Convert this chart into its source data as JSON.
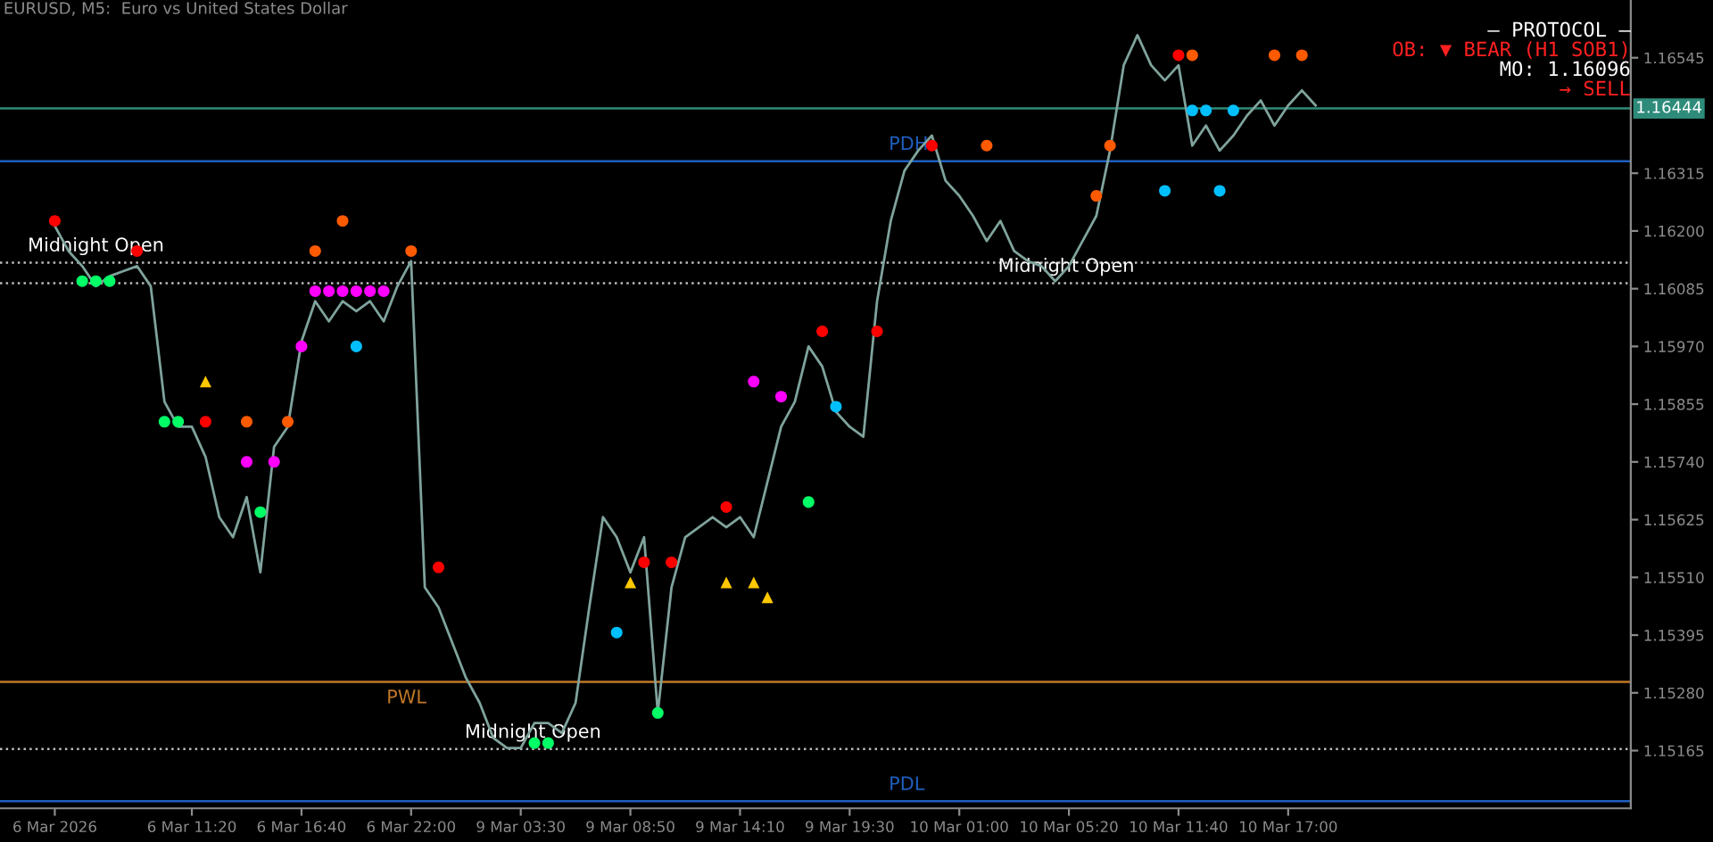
{
  "chart_data": {
    "type": "line",
    "title": "EURUSD, M5:  Euro vs United States Dollar",
    "categories": [
      "6 Mar 2026",
      null,
      null,
      null,
      null,
      null,
      null,
      null,
      null,
      null,
      "6 Mar 11:20",
      null,
      null,
      null,
      null,
      null,
      null,
      null,
      "6 Mar 16:40",
      null,
      null,
      null,
      null,
      null,
      null,
      null,
      "6 Mar 22:00",
      null,
      null,
      null,
      null,
      null,
      null,
      null,
      "9 Mar 03:30",
      null,
      null,
      null,
      null,
      null,
      null,
      null,
      "9 Mar 08:50",
      null,
      null,
      null,
      null,
      null,
      null,
      null,
      "9 Mar 14:10",
      null,
      null,
      null,
      null,
      null,
      null,
      null,
      "9 Mar 19:30",
      null,
      null,
      null,
      null,
      null,
      null,
      null,
      "10 Mar 01:00",
      null,
      null,
      null,
      null,
      null,
      null,
      null,
      "10 Mar 05:20",
      null,
      null,
      null,
      null,
      null,
      null,
      null,
      "10 Mar 11:40",
      null,
      null,
      null,
      null,
      null,
      null,
      null,
      "10 Mar 17:00",
      null,
      null
    ],
    "series": [
      {
        "type": "line",
        "color": "#7fa39c",
        "values": [
          1.1621,
          1.1616,
          1.1613,
          1.1609,
          1.1611,
          1.1612,
          1.1613,
          1.1609,
          1.1586,
          1.1581,
          1.1581,
          1.1575,
          1.1563,
          1.1559,
          1.1567,
          1.1552,
          1.1577,
          1.1581,
          1.1598,
          1.1606,
          1.1602,
          1.1606,
          1.1604,
          1.1606,
          1.1602,
          1.1609,
          1.1614,
          1.1549,
          1.1545,
          1.1538,
          1.1531,
          1.1526,
          1.1519,
          1.1517,
          1.1517,
          1.1522,
          1.1522,
          1.152,
          1.1526,
          1.1545,
          1.1563,
          1.1559,
          1.1552,
          1.1559,
          1.1524,
          1.1549,
          1.1559,
          1.1561,
          1.1563,
          1.1561,
          1.1563,
          1.1559,
          1.157,
          1.1581,
          1.1586,
          1.1597,
          1.1593,
          1.1584,
          1.1581,
          1.1579,
          1.1606,
          1.1622,
          1.1632,
          1.1636,
          1.1639,
          1.163,
          1.1627,
          1.1623,
          1.1618,
          1.1622,
          1.1616,
          1.1614,
          1.1613,
          1.161,
          1.1613,
          1.1618,
          1.1623,
          1.1636,
          1.1653,
          1.1659,
          1.1653,
          1.165,
          1.1653,
          1.1637,
          1.1641,
          1.1636,
          1.1639,
          1.1643,
          1.1646,
          1.1641,
          1.1645,
          1.1648,
          1.1645
        ]
      },
      {
        "type": "scatter",
        "marker": "circle",
        "color": "#ff0000",
        "values": [
          1.1622,
          null,
          null,
          null,
          null,
          null,
          1.1616,
          null,
          null,
          null,
          null,
          1.1582,
          null,
          null,
          null,
          null,
          null,
          null,
          null,
          null,
          null,
          null,
          null,
          null,
          null,
          null,
          null,
          null,
          1.1553,
          null,
          null,
          null,
          null,
          null,
          null,
          null,
          null,
          null,
          null,
          null,
          null,
          null,
          null,
          1.1554,
          null,
          1.1554,
          null,
          null,
          null,
          1.1565,
          null,
          null,
          null,
          null,
          null,
          null,
          1.16,
          null,
          null,
          null,
          1.16,
          null,
          null,
          null,
          1.1637,
          null,
          null,
          null,
          null,
          null,
          null,
          null,
          null,
          null,
          null,
          null,
          null,
          null,
          null,
          null,
          null,
          null,
          1.1655,
          null,
          null,
          null,
          null,
          null,
          null,
          null,
          null,
          null,
          null
        ]
      },
      {
        "type": "scatter",
        "marker": "circle",
        "color": "#ff5a00",
        "values": [
          null,
          null,
          null,
          null,
          null,
          null,
          null,
          null,
          null,
          null,
          null,
          null,
          null,
          null,
          1.1582,
          null,
          null,
          1.1582,
          null,
          1.1616,
          null,
          1.1622,
          null,
          null,
          null,
          null,
          1.1616,
          null,
          null,
          null,
          null,
          null,
          null,
          null,
          null,
          null,
          null,
          null,
          null,
          null,
          null,
          null,
          null,
          null,
          null,
          null,
          null,
          null,
          null,
          null,
          null,
          null,
          null,
          null,
          null,
          null,
          null,
          null,
          null,
          null,
          null,
          null,
          null,
          null,
          null,
          null,
          null,
          null,
          1.1637,
          null,
          null,
          null,
          null,
          null,
          null,
          null,
          1.1627,
          1.1637,
          null,
          null,
          null,
          null,
          null,
          1.1655,
          null,
          null,
          null,
          null,
          null,
          1.1655,
          null,
          1.1655,
          null
        ]
      },
      {
        "type": "scatter",
        "marker": "circle",
        "color": "#ff00ff",
        "values": [
          null,
          null,
          null,
          null,
          null,
          null,
          null,
          null,
          null,
          null,
          null,
          null,
          null,
          null,
          1.1574,
          null,
          1.1574,
          null,
          1.1597,
          1.1608,
          1.1608,
          1.1608,
          1.1608,
          1.1608,
          1.1608,
          null,
          null,
          null,
          null,
          null,
          null,
          null,
          null,
          null,
          null,
          null,
          null,
          null,
          null,
          null,
          null,
          null,
          null,
          null,
          null,
          null,
          null,
          null,
          null,
          null,
          null,
          1.159,
          null,
          1.1587,
          null,
          null,
          null,
          null,
          null,
          null,
          null,
          null,
          null,
          null,
          null,
          null,
          null,
          null,
          null,
          null,
          null,
          null,
          null,
          null,
          null,
          null,
          null,
          null,
          null,
          null,
          null,
          null,
          null,
          null,
          null,
          null,
          null,
          null,
          null,
          null,
          null,
          null,
          null
        ]
      },
      {
        "type": "scatter",
        "marker": "circle",
        "color": "#00ff66",
        "values": [
          null,
          null,
          1.161,
          1.161,
          1.161,
          null,
          null,
          null,
          1.1582,
          1.1582,
          null,
          null,
          null,
          null,
          null,
          1.1564,
          null,
          null,
          null,
          null,
          null,
          null,
          null,
          null,
          null,
          null,
          null,
          null,
          null,
          null,
          null,
          null,
          null,
          null,
          null,
          1.1518,
          1.1518,
          null,
          null,
          null,
          null,
          null,
          null,
          null,
          1.1524,
          null,
          null,
          null,
          null,
          null,
          null,
          null,
          null,
          null,
          null,
          1.1566,
          null,
          null,
          null,
          null,
          null,
          null,
          null,
          null,
          null,
          null,
          null,
          null,
          null,
          null,
          null,
          null,
          null,
          null,
          null,
          null,
          null,
          null,
          null,
          null,
          null,
          null,
          null,
          null,
          null,
          null,
          null,
          null,
          null,
          null,
          null,
          null,
          null
        ]
      },
      {
        "type": "scatter",
        "marker": "circle",
        "color": "#00bfff",
        "values": [
          null,
          null,
          null,
          null,
          null,
          null,
          null,
          null,
          null,
          null,
          null,
          null,
          null,
          null,
          null,
          null,
          null,
          null,
          null,
          null,
          null,
          null,
          1.1597,
          null,
          null,
          null,
          null,
          null,
          null,
          null,
          null,
          null,
          null,
          null,
          null,
          null,
          null,
          null,
          null,
          null,
          null,
          1.154,
          null,
          null,
          null,
          null,
          null,
          null,
          null,
          null,
          null,
          null,
          null,
          null,
          null,
          null,
          null,
          1.1585,
          null,
          null,
          null,
          null,
          null,
          null,
          null,
          null,
          null,
          null,
          null,
          null,
          null,
          null,
          null,
          null,
          null,
          null,
          null,
          null,
          null,
          null,
          null,
          1.1628,
          null,
          1.1644,
          1.1644,
          1.1628,
          1.1644,
          null,
          null,
          null,
          null,
          null,
          null
        ]
      },
      {
        "type": "scatter",
        "marker": "triangle",
        "color": "#ffc800",
        "values": [
          null,
          null,
          null,
          null,
          null,
          null,
          null,
          null,
          null,
          null,
          null,
          1.159,
          null,
          null,
          null,
          null,
          null,
          null,
          null,
          null,
          null,
          null,
          null,
          null,
          null,
          null,
          null,
          null,
          null,
          null,
          null,
          null,
          null,
          null,
          null,
          null,
          null,
          null,
          null,
          null,
          null,
          null,
          1.155,
          null,
          null,
          null,
          null,
          null,
          null,
          1.155,
          null,
          1.155,
          1.1547,
          null,
          null,
          null,
          null,
          null,
          null,
          null,
          null,
          null,
          null,
          null,
          null,
          null,
          null,
          null,
          null,
          null,
          null,
          null,
          null,
          null,
          null,
          null,
          null,
          null,
          null,
          null,
          null,
          null,
          null,
          null,
          null,
          null,
          null,
          null,
          null,
          null,
          null,
          null,
          null
        ]
      }
    ],
    "ylim": [
      1.1505,
      1.1666
    ],
    "yticks": [
      {
        "value": 1.16545,
        "label": "1.16545"
      },
      {
        "value": 1.16315,
        "label": "1.16315"
      },
      {
        "value": 1.162,
        "label": "1.16200"
      },
      {
        "value": 1.16085,
        "label": "1.16085"
      },
      {
        "value": 1.1597,
        "label": "1.15970"
      },
      {
        "value": 1.15855,
        "label": "1.15855"
      },
      {
        "value": 1.1574,
        "label": "1.15740"
      },
      {
        "value": 1.15625,
        "label": "1.15625"
      },
      {
        "value": 1.1551,
        "label": "1.15510"
      },
      {
        "value": 1.15395,
        "label": "1.15395"
      },
      {
        "value": 1.1528,
        "label": "1.15280"
      },
      {
        "value": 1.15165,
        "label": "1.15165"
      }
    ],
    "ref_lines": [
      {
        "axis": "y",
        "value": 1.16444,
        "label": "1.16444",
        "color": "#2e8b7a"
      },
      {
        "axis": "y",
        "value": 1.16339,
        "label": "PDH",
        "color": "#1f5fbf"
      },
      {
        "axis": "y",
        "value": 1.15302,
        "label": "PWL",
        "color": "#c07828"
      },
      {
        "axis": "y",
        "value": 1.15064,
        "label": "PDL",
        "color": "#1f5fbf"
      },
      {
        "axis": "y",
        "value": 1.16137,
        "label": "Midnight Open",
        "color": "#bbbbbb",
        "line_style": "dotted"
      },
      {
        "axis": "y",
        "value": 1.15168,
        "label": "Midnight Open",
        "color": "#bbbbbb",
        "line_style": "dotted"
      },
      {
        "axis": "y",
        "value": 1.16096,
        "label": "Midnight Open",
        "color": "#bbbbbb",
        "line_style": "dotted"
      }
    ],
    "annotations": [
      "— PROTOCOL —",
      "OB: ▼ BEAR (H1 SOB1)",
      "MO: 1.16096",
      "→ SELL"
    ],
    "grid": false,
    "legend": false
  }
}
